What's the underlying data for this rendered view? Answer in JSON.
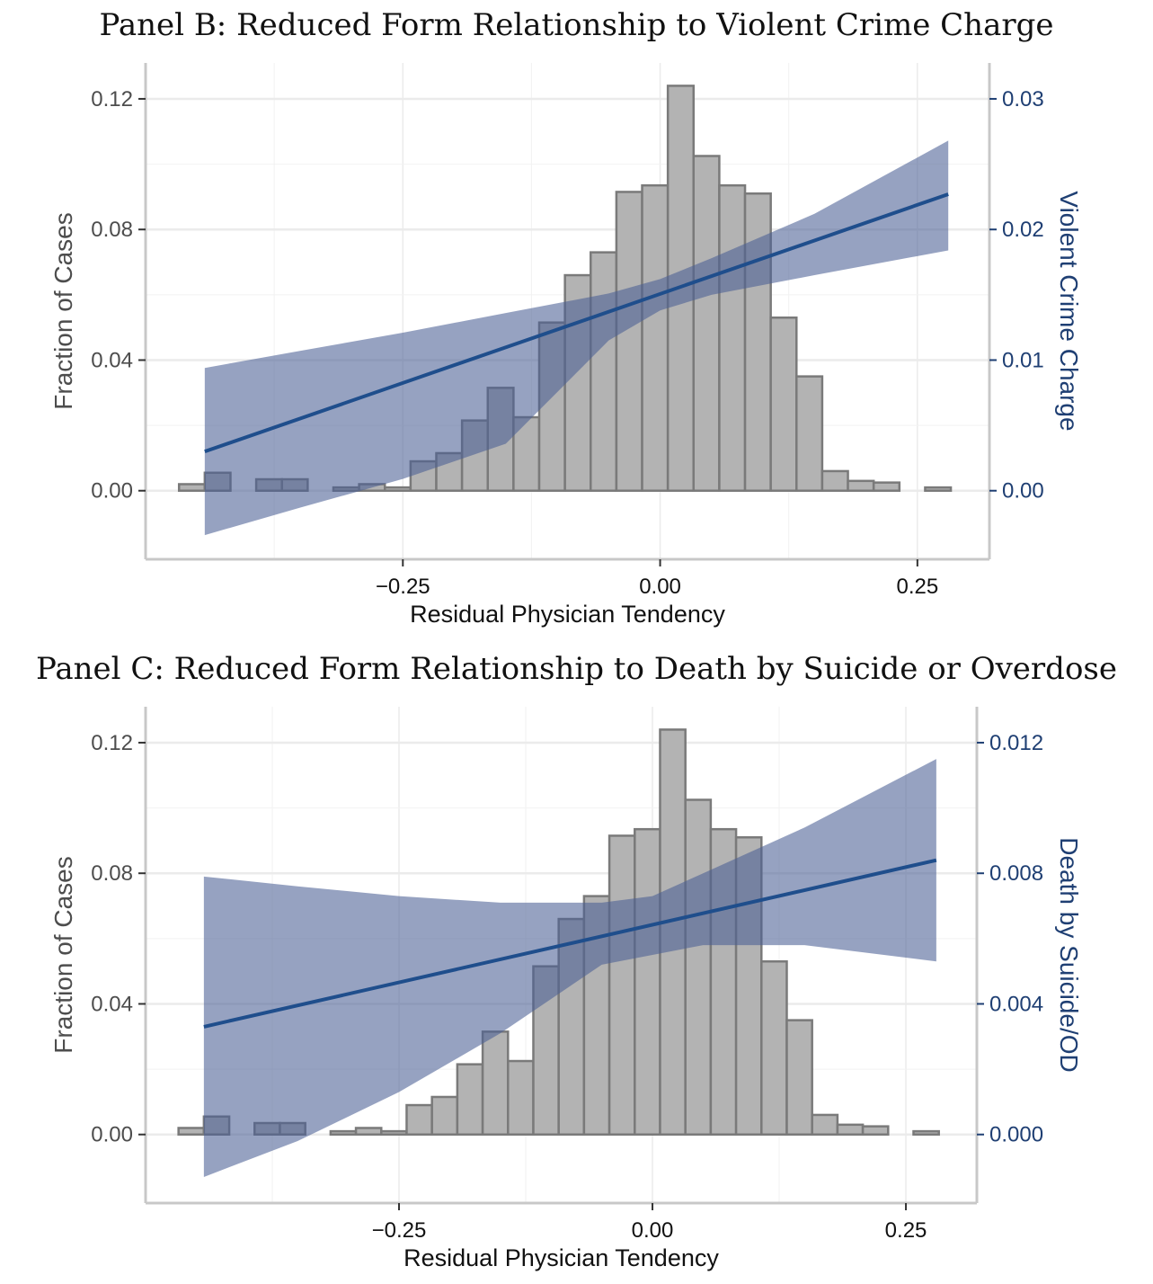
{
  "chart_data": [
    {
      "type": "bar",
      "title": "Panel B: Reduced Form Relationship to Violent Crime Charge",
      "xlabel": "Residual Physician Tendency",
      "ylabel": "Fraction of Cases",
      "y2label": "Violent Crime Charge",
      "xlim": [
        -0.5,
        0.32
      ],
      "ylim": [
        -0.021,
        0.131
      ],
      "y2lim": [
        -0.00525,
        0.03275
      ],
      "x_ticks": [
        "−0.25",
        "0.00",
        "0.25"
      ],
      "x_tick_values": [
        -0.25,
        0.0,
        0.25
      ],
      "y_ticks": [
        "0.00",
        "0.04",
        "0.08",
        "0.12"
      ],
      "y_tick_values": [
        0.0,
        0.04,
        0.08,
        0.12
      ],
      "y2_ticks": [
        "0.00",
        "0.01",
        "0.02",
        "0.03"
      ],
      "y2_tick_values": [
        0.0,
        0.01,
        0.02,
        0.03
      ],
      "grid": true,
      "histogram": {
        "bin_width": 0.025,
        "bin_start": -0.4675,
        "values": [
          0.002,
          0.0055,
          0.0,
          0.0035,
          0.0035,
          0.0,
          0.001,
          0.002,
          0.001,
          0.009,
          0.0115,
          0.0215,
          0.0315,
          0.0225,
          0.0515,
          0.066,
          0.073,
          0.0915,
          0.0935,
          0.124,
          0.1025,
          0.0935,
          0.091,
          0.053,
          0.035,
          0.006,
          0.003,
          0.0025,
          0.0,
          0.001
        ]
      },
      "fit_line": {
        "label": "Violent Crime Charge",
        "x": [
          -0.4425,
          0.28
        ],
        "y": [
          0.003,
          0.0227
        ]
      },
      "confidence_band": {
        "x": [
          -0.4425,
          -0.35,
          -0.25,
          -0.15,
          -0.05,
          0.0,
          0.05,
          0.15,
          0.28
        ],
        "upper": [
          0.0094,
          0.0107,
          0.0121,
          0.0136,
          0.0151,
          0.0162,
          0.0178,
          0.0212,
          0.0268
        ],
        "lower": [
          -0.0034,
          -0.0013,
          0.0009,
          0.0036,
          0.0115,
          0.0138,
          0.015,
          0.0165,
          0.0184
        ]
      },
      "colors": {
        "bar_fill": "#b3b3b3",
        "bar_edge": "#7a7a7a",
        "line": "#1f4e8c",
        "band": "#4a5e94"
      }
    },
    {
      "type": "bar",
      "title": "Panel C: Reduced Form Relationship to Death by Suicide or Overdose",
      "xlabel": "Residual Physician Tendency",
      "ylabel": "Fraction of Cases",
      "y2label": "Death by Suicide/OD",
      "xlim": [
        -0.5,
        0.32
      ],
      "ylim": [
        -0.021,
        0.131
      ],
      "y2lim": [
        -0.0021,
        0.0131
      ],
      "x_ticks": [
        "−0.25",
        "0.00",
        "0.25"
      ],
      "x_tick_values": [
        -0.25,
        0.0,
        0.25
      ],
      "y_ticks": [
        "0.00",
        "0.04",
        "0.08",
        "0.12"
      ],
      "y_tick_values": [
        0.0,
        0.04,
        0.08,
        0.12
      ],
      "y2_ticks": [
        "0.000",
        "0.004",
        "0.008",
        "0.012"
      ],
      "y2_tick_values": [
        0.0,
        0.004,
        0.008,
        0.012
      ],
      "grid": true,
      "histogram": {
        "bin_width": 0.025,
        "bin_start": -0.4675,
        "values": [
          0.002,
          0.0055,
          0.0,
          0.0035,
          0.0035,
          0.0,
          0.001,
          0.002,
          0.001,
          0.009,
          0.0115,
          0.0215,
          0.0315,
          0.0225,
          0.0515,
          0.066,
          0.073,
          0.0915,
          0.0935,
          0.124,
          0.1025,
          0.0935,
          0.091,
          0.053,
          0.035,
          0.006,
          0.003,
          0.0025,
          0.0,
          0.001
        ]
      },
      "fit_line": {
        "label": "Death by Suicide/OD",
        "x": [
          -0.4425,
          0.28
        ],
        "y": [
          0.0033,
          0.0084
        ]
      },
      "confidence_band": {
        "x": [
          -0.4425,
          -0.35,
          -0.25,
          -0.15,
          -0.05,
          0.0,
          0.05,
          0.15,
          0.28
        ],
        "upper": [
          0.0079,
          0.0076,
          0.0073,
          0.0071,
          0.0071,
          0.0073,
          0.008,
          0.0094,
          0.0115
        ],
        "lower": [
          -0.0013,
          -0.0002,
          0.0013,
          0.0031,
          0.0052,
          0.0055,
          0.0058,
          0.0058,
          0.0053
        ]
      },
      "colors": {
        "bar_fill": "#b3b3b3",
        "bar_edge": "#7a7a7a",
        "line": "#1f4e8c",
        "band": "#4a5e94"
      }
    }
  ]
}
